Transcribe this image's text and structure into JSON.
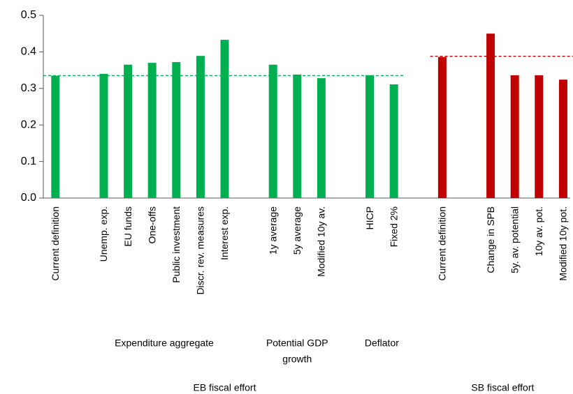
{
  "chart_data": {
    "type": "bar",
    "categories": [
      "Current definition",
      null,
      "Unemp. exp.",
      "EU funds",
      "One-offs",
      "Public investment",
      "Discr. rev. measures",
      "Interest exp.",
      null,
      "1y average",
      "5y average",
      "Modified 10y av.",
      null,
      "HICP",
      "Fixed 2%",
      null,
      "Current definition",
      null,
      "Change in SPB",
      "5y. av. potential",
      "10y av. pot.",
      "Modified 10y pot."
    ],
    "values": [
      0.335,
      null,
      0.34,
      0.365,
      0.37,
      0.372,
      0.389,
      0.433,
      null,
      0.365,
      0.338,
      0.328,
      null,
      0.336,
      0.311,
      null,
      0.386,
      null,
      0.45,
      0.336,
      0.336,
      0.324
    ],
    "colors": [
      "#00b050",
      null,
      "#00b050",
      "#00b050",
      "#00b050",
      "#00b050",
      "#00b050",
      "#00b050",
      null,
      "#00b050",
      "#00b050",
      "#00b050",
      null,
      "#00b050",
      "#00b050",
      null,
      "#c00000",
      null,
      "#c00000",
      "#c00000",
      "#c00000",
      "#c00000"
    ],
    "ylim": [
      0,
      0.5
    ],
    "yticks": [
      {
        "value": 0,
        "label": "0.0"
      },
      0.1,
      0.2,
      0.3,
      0.4,
      0.5
    ],
    "reference_lines": [
      {
        "value": 0.335,
        "color": "#00b050",
        "from": 0,
        "to": 14
      },
      {
        "value": 0.388,
        "color": "#c00000",
        "from": 16,
        "to": 21
      }
    ],
    "groups": [
      {
        "lines": [
          "Expenditure aggregate"
        ],
        "from": 2,
        "to": 7
      },
      {
        "lines": [
          "Potential GDP",
          "growth"
        ],
        "from": 9,
        "to": 11
      },
      {
        "lines": [
          "Deflator"
        ],
        "from": 13,
        "to": 14
      }
    ],
    "supergroups": [
      {
        "lines": [
          "EB fiscal effort"
        ],
        "from": 0,
        "to": 14
      },
      {
        "lines": [
          "SB fiscal effort"
        ],
        "from": 16,
        "to": 21
      }
    ]
  }
}
